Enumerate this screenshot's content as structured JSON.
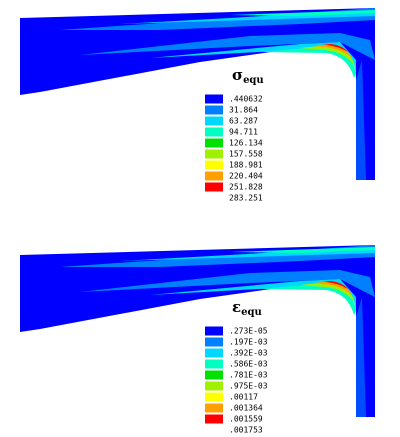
{
  "panels": [
    {
      "title": {
        "symbol": "σ",
        "subscript": "equ"
      },
      "legend": {
        "colors": [
          "#0000ff",
          "#0080ff",
          "#00d8ff",
          "#00ffc0",
          "#00e000",
          "#a0f000",
          "#ffff00",
          "#ffa000",
          "#ff0000"
        ],
        "labels": [
          ".440632",
          "31.864",
          "63.287",
          "94.711",
          "126.134",
          "157.558",
          "188.981",
          "220.404",
          "251.828",
          "283.251"
        ]
      }
    },
    {
      "title": {
        "symbol": "ε",
        "subscript": "equ"
      },
      "legend": {
        "colors": [
          "#0000ff",
          "#0080ff",
          "#00d8ff",
          "#00ffc0",
          "#00e000",
          "#a0f000",
          "#ffff00",
          "#ffa000",
          "#ff0000"
        ],
        "labels": [
          ".273E-05",
          ".197E-03",
          ".392E-03",
          ".586E-03",
          ".781E-03",
          ".975E-03",
          ".00117",
          ".001364",
          ".001559",
          ".001753"
        ]
      }
    }
  ]
}
